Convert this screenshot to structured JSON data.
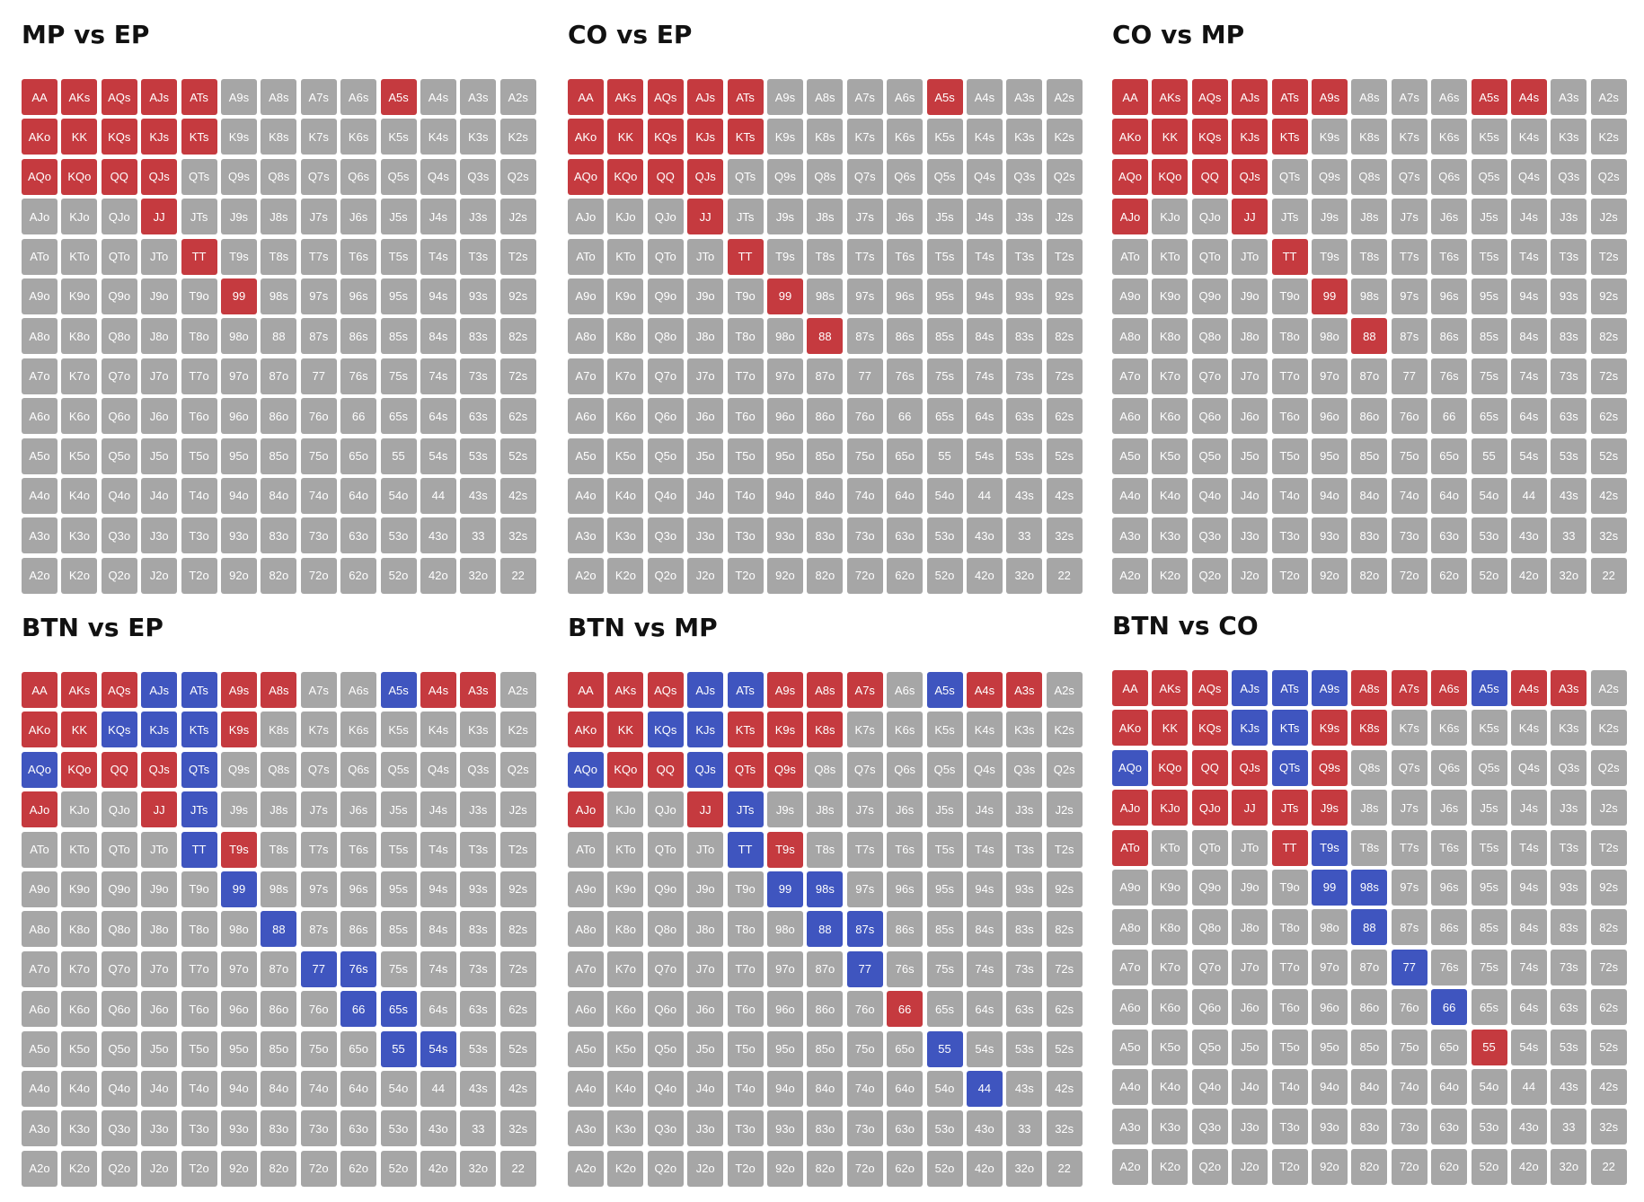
{
  "colors": {
    "fold": "#a6a6a6",
    "three_bet": "#c53a3f",
    "call": "#3f55bf",
    "text": "#ffffff"
  },
  "hands": [
    [
      "AA",
      "AKs",
      "AQs",
      "AJs",
      "ATs",
      "A9s",
      "A8s",
      "A7s",
      "A6s",
      "A5s",
      "A4s",
      "A3s",
      "A2s"
    ],
    [
      "AKo",
      "KK",
      "KQs",
      "KJs",
      "KTs",
      "K9s",
      "K8s",
      "K7s",
      "K6s",
      "K5s",
      "K4s",
      "K3s",
      "K2s"
    ],
    [
      "AQo",
      "KQo",
      "QQ",
      "QJs",
      "QTs",
      "Q9s",
      "Q8s",
      "Q7s",
      "Q6s",
      "Q5s",
      "Q4s",
      "Q3s",
      "Q2s"
    ],
    [
      "AJo",
      "KJo",
      "QJo",
      "JJ",
      "JTs",
      "J9s",
      "J8s",
      "J7s",
      "J6s",
      "J5s",
      "J4s",
      "J3s",
      "J2s"
    ],
    [
      "ATo",
      "KTo",
      "QTo",
      "JTo",
      "TT",
      "T9s",
      "T8s",
      "T7s",
      "T6s",
      "T5s",
      "T4s",
      "T3s",
      "T2s"
    ],
    [
      "A9o",
      "K9o",
      "Q9o",
      "J9o",
      "T9o",
      "99",
      "98s",
      "97s",
      "96s",
      "95s",
      "94s",
      "93s",
      "92s"
    ],
    [
      "A8o",
      "K8o",
      "Q8o",
      "J8o",
      "T8o",
      "98o",
      "88",
      "87s",
      "86s",
      "85s",
      "84s",
      "83s",
      "82s"
    ],
    [
      "A7o",
      "K7o",
      "Q7o",
      "J7o",
      "T7o",
      "97o",
      "87o",
      "77",
      "76s",
      "75s",
      "74s",
      "73s",
      "72s"
    ],
    [
      "A6o",
      "K6o",
      "Q6o",
      "J6o",
      "T6o",
      "96o",
      "86o",
      "76o",
      "66",
      "65s",
      "64s",
      "63s",
      "62s"
    ],
    [
      "A5o",
      "K5o",
      "Q5o",
      "J5o",
      "T5o",
      "95o",
      "85o",
      "75o",
      "65o",
      "55",
      "54s",
      "53s",
      "52s"
    ],
    [
      "A4o",
      "K4o",
      "Q4o",
      "J4o",
      "T4o",
      "94o",
      "84o",
      "74o",
      "64o",
      "54o",
      "44",
      "43s",
      "42s"
    ],
    [
      "A3o",
      "K3o",
      "Q3o",
      "J3o",
      "T3o",
      "93o",
      "83o",
      "73o",
      "63o",
      "53o",
      "43o",
      "33",
      "32s"
    ],
    [
      "A2o",
      "K2o",
      "Q2o",
      "J2o",
      "T2o",
      "92o",
      "82o",
      "72o",
      "62o",
      "52o",
      "42o",
      "32o",
      "22"
    ]
  ],
  "panels": [
    {
      "title": "MP vs EP",
      "red": [
        "AA",
        "AKs",
        "AQs",
        "AJs",
        "ATs",
        "A5s",
        "AKo",
        "KK",
        "KQs",
        "KJs",
        "KTs",
        "AQo",
        "KQo",
        "QQ",
        "QJs",
        "JJ",
        "TT",
        "99"
      ],
      "blue": []
    },
    {
      "title": "CO vs EP",
      "red": [
        "AA",
        "AKs",
        "AQs",
        "AJs",
        "ATs",
        "A5s",
        "AKo",
        "KK",
        "KQs",
        "KJs",
        "KTs",
        "AQo",
        "KQo",
        "QQ",
        "QJs",
        "JJ",
        "TT",
        "99",
        "88"
      ],
      "blue": []
    },
    {
      "title": "CO vs MP",
      "red": [
        "AA",
        "AKs",
        "AQs",
        "AJs",
        "ATs",
        "A9s",
        "A5s",
        "A4s",
        "AKo",
        "KK",
        "KQs",
        "KJs",
        "KTs",
        "AQo",
        "KQo",
        "QQ",
        "QJs",
        "AJo",
        "JJ",
        "TT",
        "99",
        "88"
      ],
      "blue": []
    },
    {
      "title": "BTN vs EP",
      "red": [
        "AA",
        "AKs",
        "AQs",
        "A9s",
        "A8s",
        "A4s",
        "A3s",
        "AKo",
        "KK",
        "K9s",
        "KQo",
        "QQ",
        "QJs",
        "AJo",
        "JJ",
        "T9s"
      ],
      "blue": [
        "AJs",
        "ATs",
        "A5s",
        "KQs",
        "KJs",
        "KTs",
        "AQo",
        "QTs",
        "JTs",
        "TT",
        "99",
        "88",
        "77",
        "76s",
        "66",
        "65s",
        "55",
        "54s"
      ]
    },
    {
      "title": "BTN vs MP",
      "red": [
        "AA",
        "AKs",
        "AQs",
        "A9s",
        "A8s",
        "A7s",
        "A4s",
        "A3s",
        "AKo",
        "KK",
        "KTs",
        "K9s",
        "K8s",
        "KQo",
        "QQ",
        "QTs",
        "Q9s",
        "AJo",
        "JJ",
        "T9s",
        "66"
      ],
      "blue": [
        "AJs",
        "ATs",
        "A5s",
        "KQs",
        "KJs",
        "AQo",
        "QJs",
        "JTs",
        "TT",
        "99",
        "98s",
        "88",
        "87s",
        "77",
        "55",
        "44"
      ]
    },
    {
      "title": "BTN vs CO",
      "red": [
        "AA",
        "AKs",
        "AQs",
        "A8s",
        "A7s",
        "A6s",
        "A4s",
        "A3s",
        "AKo",
        "KK",
        "KQs",
        "K9s",
        "K8s",
        "KQo",
        "QQ",
        "QJs",
        "Q9s",
        "AJo",
        "KJo",
        "QJo",
        "JJ",
        "JTs",
        "J9s",
        "ATo",
        "TT",
        "55"
      ],
      "blue": [
        "AJs",
        "ATs",
        "A9s",
        "A5s",
        "KJs",
        "KTs",
        "AQo",
        "QTs",
        "T9s",
        "99",
        "98s",
        "88",
        "77",
        "66"
      ]
    }
  ]
}
